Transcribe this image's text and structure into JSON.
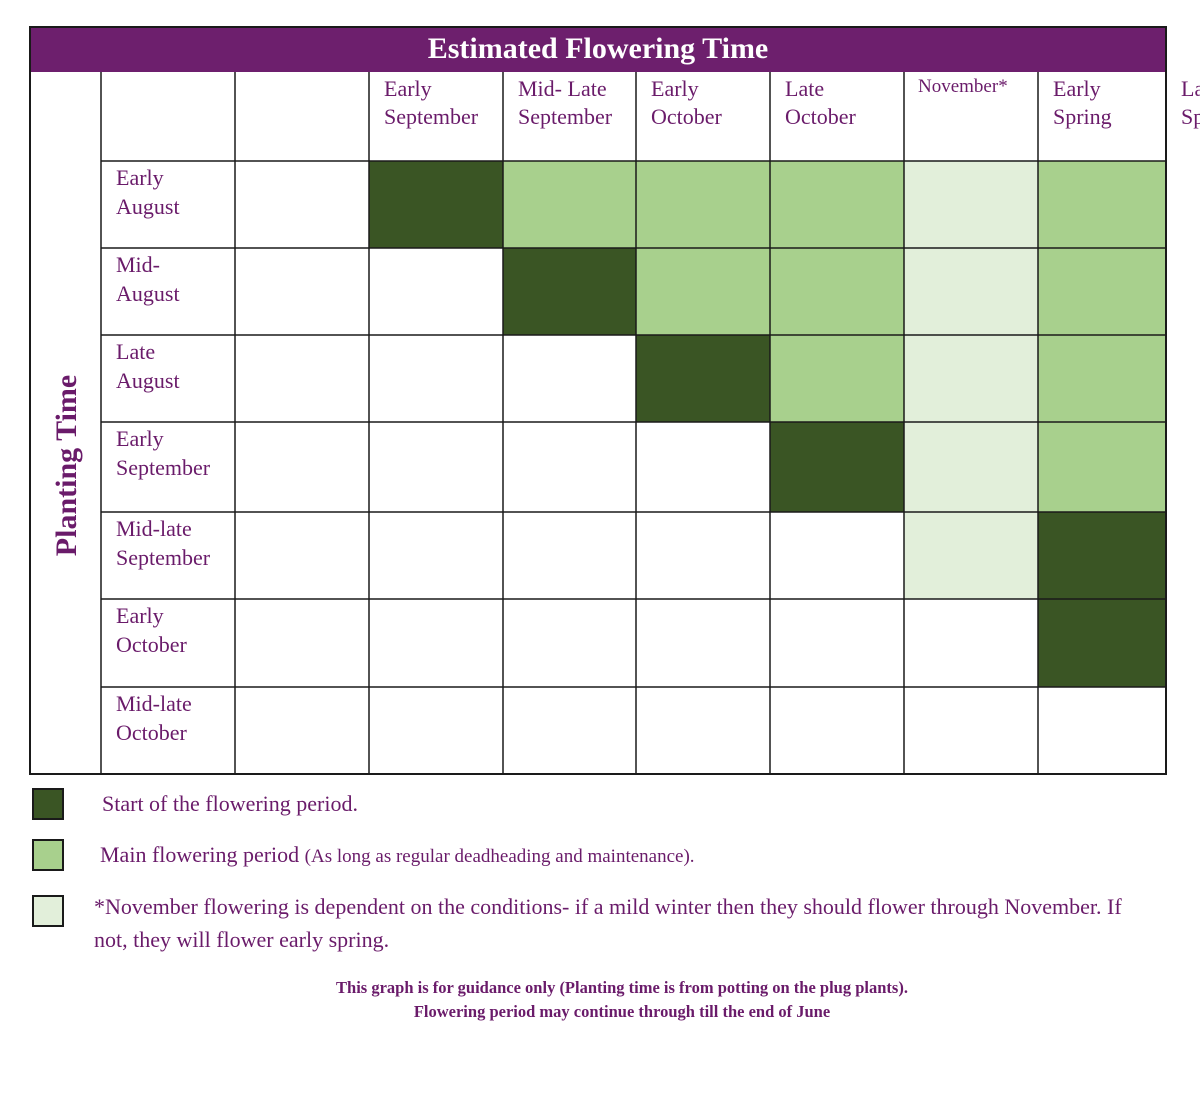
{
  "chart_data": {
    "type": "heatmap",
    "title": "Estimated Flowering Time",
    "ylabel": "Planting Time",
    "columns": [
      [
        "Early",
        "September"
      ],
      [
        "Mid- Late",
        "September"
      ],
      [
        "Early",
        "October"
      ],
      [
        "Late",
        "October"
      ],
      [
        "November*"
      ],
      [
        "Early",
        "Spring"
      ],
      [
        "Late",
        "Spring"
      ]
    ],
    "rows": [
      [
        "Early",
        "August"
      ],
      [
        "Mid-",
        "August"
      ],
      [
        "Late",
        "August"
      ],
      [
        "Early",
        "September"
      ],
      [
        "Mid-late",
        "September"
      ],
      [
        "Early",
        "October"
      ],
      [
        "Mid-late",
        "October"
      ]
    ],
    "cells": [
      [
        "start",
        "main",
        "main",
        "main",
        "november",
        "main",
        "main"
      ],
      [
        "none",
        "start",
        "main",
        "main",
        "november",
        "main",
        "main"
      ],
      [
        "none",
        "none",
        "start",
        "main",
        "november",
        "main",
        "main"
      ],
      [
        "none",
        "none",
        "none",
        "start",
        "november",
        "main",
        "main"
      ],
      [
        "none",
        "none",
        "none",
        "none",
        "november",
        "start",
        "main"
      ],
      [
        "none",
        "none",
        "none",
        "none",
        "none",
        "start",
        "main"
      ],
      [
        "none",
        "none",
        "none",
        "none",
        "none",
        "none",
        "start"
      ]
    ],
    "colors": {
      "start": "#3a5524",
      "main": "#a8d08d",
      "november": "#e2efda",
      "none": "#ffffff",
      "header": "#6d1f6d",
      "text": "#6a1b6a"
    }
  },
  "legend": {
    "start": "Start of the flowering period.",
    "main_a": "Main flowering period ",
    "main_b": "(As long as regular deadheading and maintenance).",
    "november": "*November flowering is dependent on the conditions- if a mild winter then they should flower through November. If not, they will flower early spring."
  },
  "footnote": {
    "line1": "This graph is for guidance only (Planting time is from potting on the plug plants).",
    "line2": "Flowering period may continue through till the end of June"
  }
}
